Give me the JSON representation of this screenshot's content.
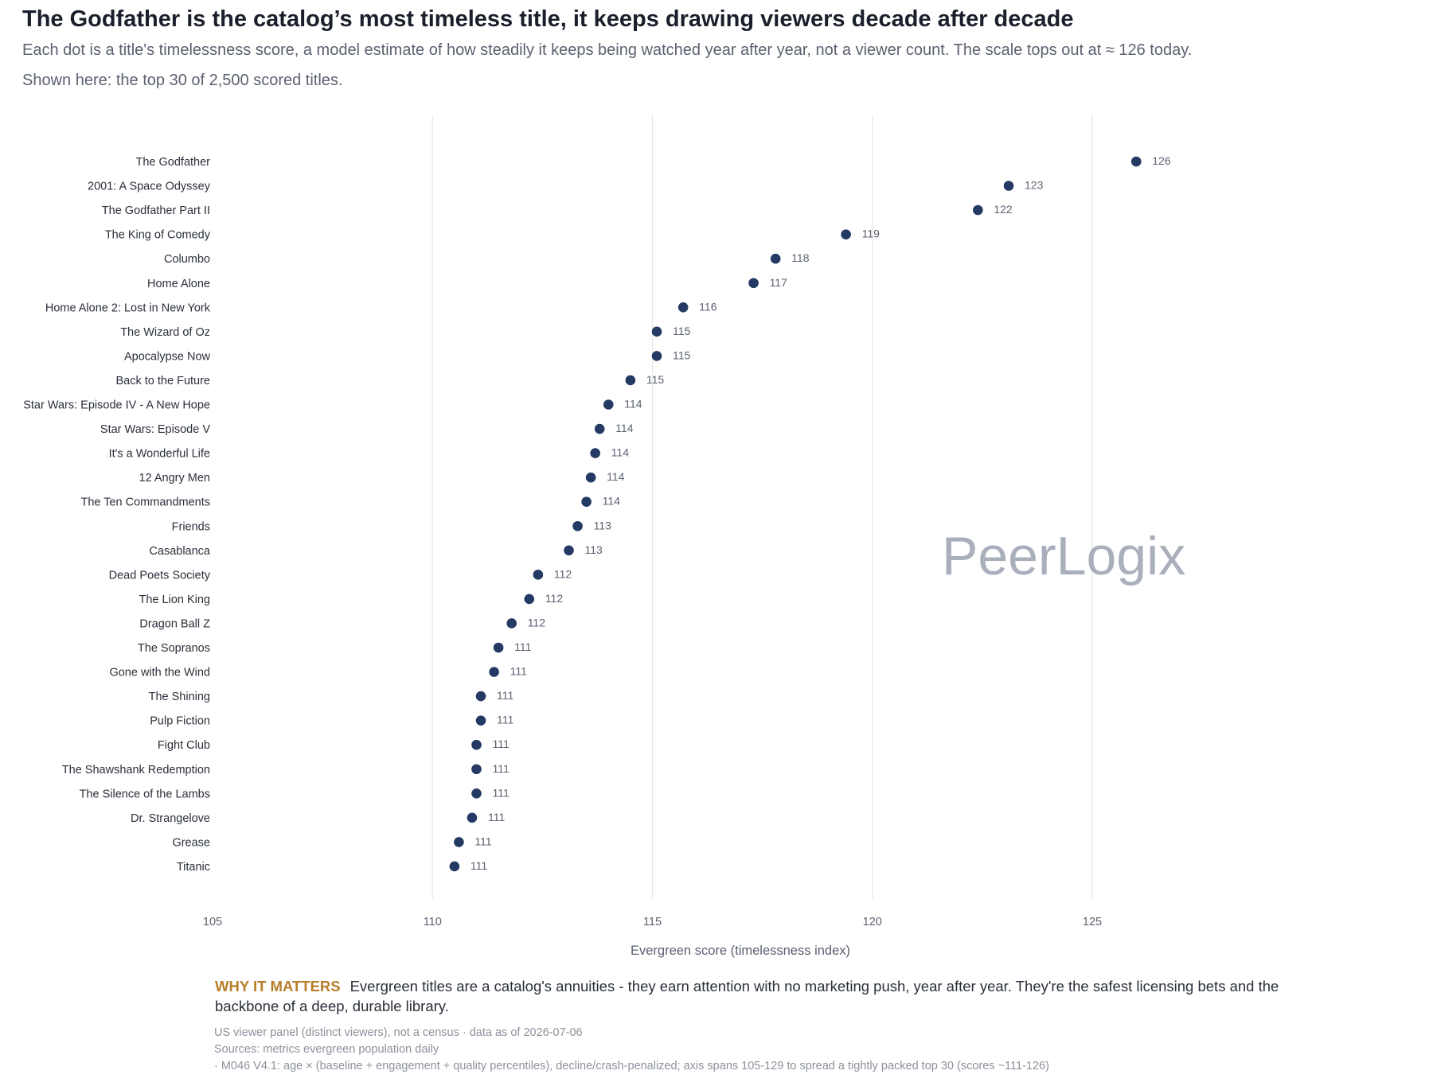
{
  "header": {
    "title": "The Godfather is the catalog’s most timeless title, it keeps drawing viewers decade after decade",
    "subtitle_line1": "Each dot is a title's timelessness score, a model estimate of how steadily it keeps being watched year after year, not a viewer count. The scale tops out at ≈ 126 today.",
    "subtitle_line2": "Shown here: the top 30 of 2,500 scored titles."
  },
  "chart_data": {
    "type": "scatter",
    "xlabel": "Evergreen score (timelessness index)",
    "ylabel": "",
    "xlim": [
      105,
      129
    ],
    "xticks": [
      105,
      110,
      115,
      120,
      125
    ],
    "grid": true,
    "legend": "none",
    "dot_color": "#243a64",
    "categories": [
      "The Godfather",
      "2001: A Space Odyssey",
      "The Godfather Part II",
      "The King of Comedy",
      "Columbo",
      "Home Alone",
      "Home Alone 2: Lost in New York",
      "The Wizard of Oz",
      "Apocalypse Now",
      "Back to the Future",
      "Star Wars: Episode IV - A New Hope",
      "Star Wars: Episode V",
      "It's a Wonderful Life",
      "12 Angry Men",
      "The Ten Commandments",
      "Friends",
      "Casablanca",
      "Dead Poets Society",
      "The Lion King",
      "Dragon Ball Z",
      "The Sopranos",
      "Gone with the Wind",
      "The Shining",
      "Pulp Fiction",
      "Fight Club",
      "The Shawshank Redemption",
      "The Silence of the Lambs",
      "Dr. Strangelove",
      "Grease",
      "Titanic"
    ],
    "values": [
      126.0,
      123.1,
      122.4,
      119.4,
      117.8,
      117.3,
      115.7,
      115.1,
      115.1,
      114.5,
      114.0,
      113.8,
      113.7,
      113.6,
      113.5,
      113.3,
      113.1,
      112.4,
      112.2,
      111.8,
      111.5,
      111.4,
      111.1,
      111.1,
      111.0,
      111.0,
      111.0,
      110.9,
      110.6,
      110.5
    ],
    "value_labels": [
      "126",
      "123",
      "122",
      "119",
      "118",
      "117",
      "116",
      "115",
      "115",
      "115",
      "114",
      "114",
      "114",
      "114",
      "114",
      "113",
      "113",
      "112",
      "112",
      "112",
      "111",
      "111",
      "111",
      "111",
      "111",
      "111",
      "111",
      "111",
      "111",
      "111"
    ]
  },
  "watermark": "PeerLogix",
  "why_it_matters": {
    "heading": "WHY IT MATTERS",
    "text": "Evergreen titles are a catalog's annuities - they earn attention with no marketing push, year after year. They're the safest licensing bets and the backbone of a deep, durable library."
  },
  "footnotes": {
    "line1": "US viewer panel (distinct viewers), not a census · data as of 2026-07-06",
    "line2": "Sources: metrics evergreen population daily",
    "line3": "· M046 V4.1: age × (baseline + engagement + quality percentiles), decline/crash-penalized; axis spans 105-129 to spread a tightly packed top 30 (scores ~111-126)"
  }
}
